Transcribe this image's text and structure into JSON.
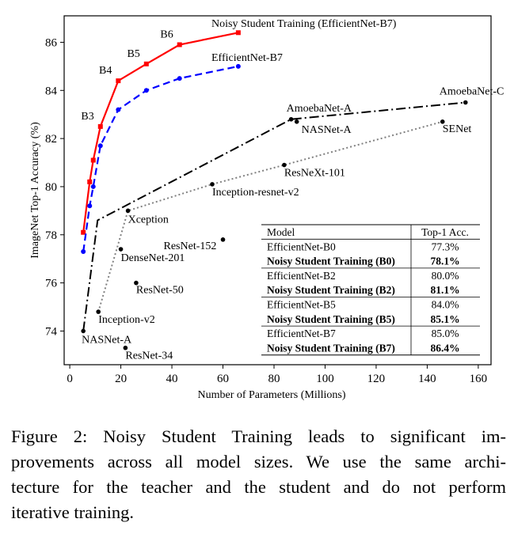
{
  "chart_data": {
    "type": "line",
    "xlabel": "Number of Parameters (Millions)",
    "ylabel": "ImageNet Top-1 Accuracy (%)",
    "xlim": [
      -2.2,
      165
    ],
    "ylim": [
      72.6,
      87.1
    ],
    "xticks": [
      0,
      20,
      40,
      60,
      80,
      100,
      120,
      140,
      160
    ],
    "yticks": [
      74,
      76,
      78,
      80,
      82,
      84,
      86
    ],
    "grid": false,
    "series": [
      {
        "name": "Noisy Student Training (EfficientNet-B7)",
        "color": "#ff0000",
        "style": "solid",
        "marker": "square",
        "x": [
          5.3,
          7.8,
          9.2,
          12,
          19,
          30,
          43,
          66
        ],
        "y": [
          78.1,
          80.2,
          81.1,
          82.5,
          84.4,
          85.1,
          85.9,
          86.4
        ],
        "point_labels": [
          "",
          "",
          "",
          "B3",
          "B4",
          "B5",
          "B6",
          ""
        ]
      },
      {
        "name": "EfficientNet-B7",
        "color": "#0000ff",
        "style": "dashed",
        "marker": "circle",
        "x": [
          5.3,
          7.8,
          9.2,
          12,
          19,
          30,
          43,
          66
        ],
        "y": [
          77.3,
          79.2,
          80.0,
          81.7,
          83.2,
          84.0,
          84.5,
          85.0
        ]
      },
      {
        "name": "",
        "color": "#000000",
        "style": "dashdot",
        "marker": "circle",
        "x": [
          5.3,
          10.9,
          86.7,
          155
        ],
        "y": [
          74.0,
          78.6,
          82.8,
          83.5
        ]
      },
      {
        "name": "",
        "color": "#808080",
        "style": "dotted",
        "marker": "circle",
        "x": [
          11.2,
          22.8,
          55.8,
          84,
          146
        ],
        "y": [
          74.8,
          79.0,
          80.1,
          80.9,
          82.7
        ]
      }
    ],
    "points": [
      {
        "label": "AmoebaNet-A",
        "x": 86.7,
        "y": 82.8
      },
      {
        "label": "NASNet-A",
        "x": 88.9,
        "y": 82.7
      },
      {
        "label": "AmoebaNet-C",
        "x": 155,
        "y": 83.5
      },
      {
        "label": "SENet",
        "x": 146,
        "y": 82.7
      },
      {
        "label": "ResNeXt-101",
        "x": 84,
        "y": 80.9
      },
      {
        "label": "Inception-resnet-v2",
        "x": 55.8,
        "y": 80.1
      },
      {
        "label": "Xception",
        "x": 22.8,
        "y": 79.0
      },
      {
        "label": "ResNet-152",
        "x": 60,
        "y": 77.8
      },
      {
        "label": "DenseNet-201",
        "x": 20,
        "y": 77.4
      },
      {
        "label": "ResNet-50",
        "x": 26,
        "y": 76.0
      },
      {
        "label": "Inception-v2",
        "x": 11.2,
        "y": 74.8
      },
      {
        "label": "NASNet-A",
        "x": 5.3,
        "y": 74.0
      },
      {
        "label": "ResNet-34",
        "x": 21.8,
        "y": 73.3
      }
    ],
    "table": {
      "headers": [
        "Model",
        "Top-1 Acc."
      ],
      "rows": [
        [
          "EfficientNet-B0",
          "77.3%",
          false
        ],
        [
          "Noisy Student Training (B0)",
          "78.1%",
          true
        ],
        [
          "EfficientNet-B2",
          "80.0%",
          false
        ],
        [
          "Noisy Student Training (B2)",
          "81.1%",
          true
        ],
        [
          "EfficientNet-B5",
          "84.0%",
          false
        ],
        [
          "Noisy Student Training (B5)",
          "85.1%",
          true
        ],
        [
          "EfficientNet-B7",
          "85.0%",
          false
        ],
        [
          "Noisy Student Training (B7)",
          "86.4%",
          true
        ]
      ]
    }
  },
  "caption": {
    "lines": [
      "Figure 2: Noisy Student Training leads to significant im-",
      "provements across all model sizes. We use the same archi-",
      "tecture for the teacher and the student and do not perform",
      "iterative training."
    ]
  }
}
